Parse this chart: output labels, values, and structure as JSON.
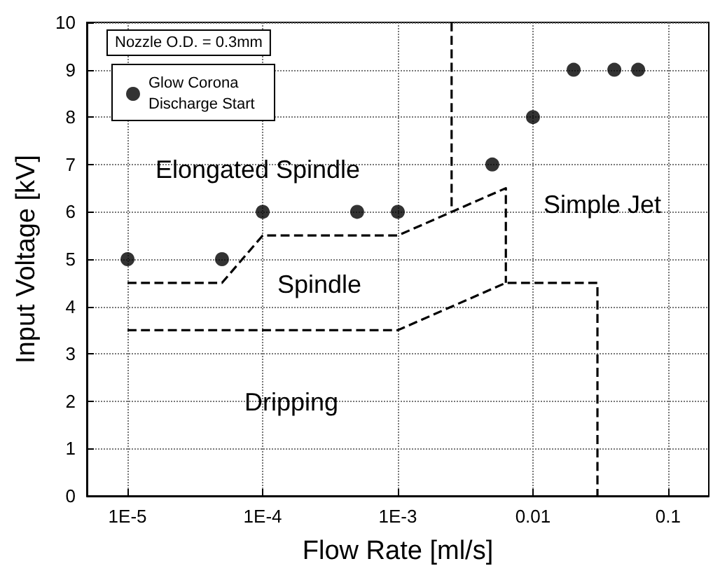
{
  "chart_data": {
    "type": "scatter",
    "xlabel": "Flow Rate [ml/s]",
    "ylabel": "Input Voltage [kV]",
    "log": "x",
    "xlim": [
      5e-06,
      0.2
    ],
    "xticks": [
      {
        "value": 1e-05,
        "label": "1E-5"
      },
      {
        "value": 0.0001,
        "label": "1E-4"
      },
      {
        "value": 0.001,
        "label": "1E-3"
      },
      {
        "value": 0.01,
        "label": "0.01"
      },
      {
        "value": 0.1,
        "label": "0.1"
      }
    ],
    "ylim": [
      0,
      10
    ],
    "yticks": [
      0,
      1,
      2,
      3,
      4,
      5,
      6,
      7,
      8,
      9,
      10
    ],
    "grid": true,
    "legend": "top left",
    "series": [
      {
        "name": "Glow Corona Discharge Start",
        "marker": "circle",
        "color": "#000000",
        "x": [
          1e-05,
          5e-05,
          0.0001,
          0.0005,
          0.001,
          0.005,
          0.01,
          0.02,
          0.04,
          0.06
        ],
        "values": [
          5,
          5,
          6,
          6,
          6,
          7,
          8,
          9,
          9,
          9
        ]
      },
      {
        "type": "line",
        "marker": "none",
        "line_style": "dashed",
        "color": "#000000",
        "x": [
          1e-05,
          5e-05,
          0.0001,
          0.001,
          0.0063,
          0.0063
        ],
        "values": [
          4.5,
          4.5,
          5.5,
          5.5,
          6.5,
          4.5
        ]
      },
      {
        "type": "line",
        "marker": "none",
        "line_style": "dashed",
        "color": "#000000",
        "x": [
          1e-05,
          0.001,
          0.0063,
          0.03,
          0.03
        ],
        "values": [
          3.5,
          3.5,
          4.5,
          4.5,
          0
        ]
      },
      {
        "type": "line",
        "marker": "none",
        "line_style": "dashed",
        "color": "#000000",
        "x": [
          0.0025,
          0.0025
        ],
        "values": [
          10,
          6
        ]
      }
    ],
    "annotations": [
      "Nozzle O.D. = 0.3mm",
      "Elongated Spindle",
      "Spindle",
      "Simple Jet",
      "Dripping"
    ]
  }
}
